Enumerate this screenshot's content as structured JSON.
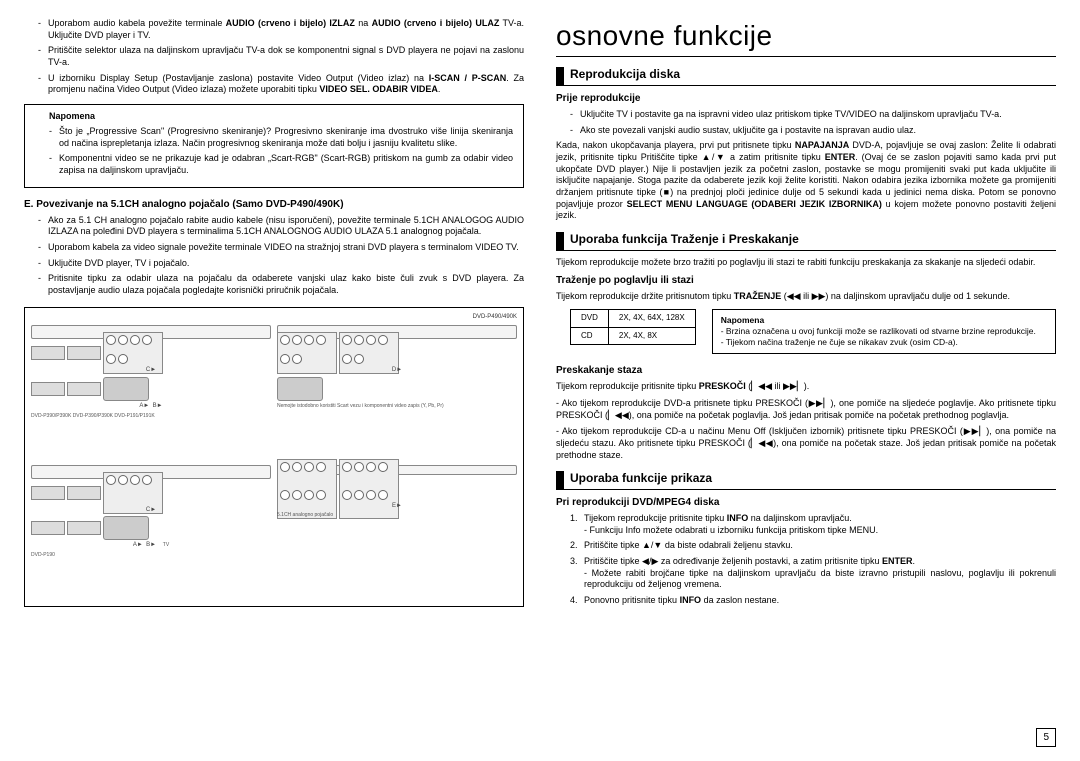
{
  "page_number": "5",
  "left": {
    "bullets_top": [
      "Uporabom audio kabela povežite terminale <b>AUDIO (crveno i bijelo) IZLAZ</b> na <b>AUDIO (crveno i bijelo) ULAZ</b> TV-a. Uključite DVD player i TV.",
      "Pritiščite selektor ulaza na daljinskom upravljaču TV-a dok se komponentni signal s DVD playera ne pojavi na zaslonu TV-a.",
      "U izborniku Display Setup (Postavljanje zaslona) postavite Video Output (Video izlaz) na <b>I-SCAN / P-SCAN</b>. Za promjenu načina Video Output (Video izlaza) možete uporabiti tipku <b>VIDEO SEL. ODABIR VIDEA</b>."
    ],
    "note_label": "Napomena",
    "note_items": [
      "Što je „Progressive Scan\" (Progresivno skeniranje)?\nProgresivno skeniranje ima dvostruko više linija skeniranja od načina isprepletanja izlaza. Način progresivnog skeniranja može dati bolju i jasniju kvalitetu slike.",
      "Komponentni video se ne prikazuje kad je odabran „Scart-RGB\" (Scart-RGB) pritiskom na gumb za odabir video zapisa na daljinskom upravljaču."
    ],
    "heading_e": "E. Povezivanje na 5.1CH analogno pojačalo (Samo DVD-P490/490K)",
    "bullets_e": [
      "Ako za 5.1 CH analogno pojačalo rabite audio kabele (nisu isporučeni), povežite terminale 5.1CH ANALOGOG AUDIO IZLAZA na poleđini DVD playera s terminalima 5.1CH ANALOGNOG AUDIO ULAZA 5.1 analognog pojačala.",
      "Uporabom kabela za video signale povežite terminale VIDEO na stražnjoj strani DVD playera s terminalom VIDEO TV.",
      "Uključite DVD player, TV i pojačalo.",
      "Pritisnite tipku za odabir ulaza na pojačalu da odaberete vanjski ulaz kako biste čuli zvuk s DVD playera. Za postavljanje audio ulaza pojačala pogledajte korisnički priručnik pojačala."
    ],
    "diagram": {
      "model_tr": "DVD-P490/490K",
      "models_bl": "DVD-P390/P390K\nDVD-P390/P390K\nDVD-P191/P191K",
      "model_br": "DVD-P190",
      "caption_mid": "Nemojte istodobno koristiti\nScart vezu i komponentni\nvideo zapis (Y, Pb, Pr)",
      "caption_amp": "5.1CH analogno pojačalo",
      "plug_labels": [
        "A►",
        "B►",
        "C►",
        "D►",
        "E►"
      ],
      "tv_label": "TV"
    }
  },
  "right": {
    "title": "osnovne funkcije",
    "sec1": "Reprodukcija diska",
    "sub1": "Prije reprodukcije",
    "bullets_pre": [
      "Uključite TV i postavite ga na ispravni video ulaz pritiskom tipke TV/VIDEO na daljinskom upravljaču TV-a.",
      "Ako ste povezali vanjski audio sustav, uključite ga i postavite na ispravan audio ulaz."
    ],
    "para_pre": "Kada, nakon ukopčavanja playera, prvi put pritisnete tipku <b>NAPAJANJA</b> DVD-A, pojavljuje se ovaj zaslon: Želite li odabrati jezik, pritisnite tipku Pritiščite tipke ▲/▼ a zatim pritisnite tipku <b>ENTER</b>. (Ovaj će se zaslon pojaviti samo kada prvi put ukopčate DVD player.) Nije li postavljen jezik za početni zaslon, postavke se mogu promijeniti svaki put kada uključite ili isključite napajanje. Stoga pazite da odaberete jezik koji želite koristiti. Nakon odabira jezika izbornika možete ga promijeniti držanjem pritisnute tipke (■) na prednjoj ploči jedinice dulje od 5 sekundi kada u jedinici nema diska. Potom se ponovno pojavljuje prozor <b>SELECT MENU LANGUAGE (ODABERI JEZIK IZBORNIKA)</b> u kojem možete ponovno postaviti željeni jezik.",
    "sec2": "Uporaba funkcija Traženje i Preskakanje",
    "para_sec2": "Tijekom reprodukcije možete brzo tražiti po poglavlju ili stazi te rabiti funkciju preskakanja za skakanje na sljedeći odabir.",
    "sub2": "Traženje po poglavlju ili stazi",
    "para_sub2": "Tijekom reprodukcije držite pritisnutom tipku <b>TRAŽENJE</b> (◀◀ ili ▶▶) na daljinskom upravljaču dulje od 1 sekunde.",
    "speed_table": {
      "rows": [
        [
          "DVD",
          "2X, 4X, 64X, 128X"
        ],
        [
          "CD",
          "2X, 4X, 8X"
        ]
      ]
    },
    "note_label": "Napomena",
    "note_speed": [
      "Brzina označena u ovoj funkciji može se razlikovati od stvarne brzine reprodukcije.",
      "Tijekom načina traženje ne čuje se nikakav zvuk (osim CD-a)."
    ],
    "sub3": "Preskakanje staza",
    "para_sub3": "Tijekom reprodukcije pritisnite tipku <b>PRESKOČI</b> (▏◀◀ ili ▶▶▏).",
    "bullets_skip": [
      "Ako tijekom reprodukcije DVD-a pritisnete tipku PRESKOČI (▶▶▏), one pomiče na sljedeće poglavlje. Ako pritisnete tipku PRESKOČI (▏◀◀), ona pomiče na početak poglavlja. Još jedan pritisak pomiče na početak prethodnog poglavlja.",
      "Ako tijekom reprodukcije CD-a u načinu Menu Off (Isključen izbornik) pritisnete tipku PRESKOČI (▶▶▏), ona pomiče na sljedeću stazu. Ako pritisnete tipku PRESKOČI (▏◀◀), ona pomiče na početak staze. Još jedan pritisak pomiče na početak prethodne staze."
    ],
    "sec3": "Uporaba funkcije prikaza",
    "sub4": "Pri reprodukciji DVD/MPEG4 diska",
    "ol_display": [
      "Tijekom reprodukcije pritisnite tipku <b>INFO</b> na daljinskom upravljaču.\n- Funkciju Info možete odabrati u izborniku funkcija pritiskom tipke MENU.",
      "Pritiščite tipke ▲/▼ da biste odabrali željenu stavku.",
      "Pritiščite tipke ◀/▶ za određivanje željenih postavki, a zatim pritisnite tipku <b>ENTER</b>.\n- Možete rabiti brojčane tipke na daljinskom upravljaču da biste izravno pristupili naslovu, poglavlju ili pokrenuli reprodukciju od željenog vremena.",
      "Ponovno pritisnite tipku <b>INFO</b> da zaslon nestane."
    ]
  }
}
